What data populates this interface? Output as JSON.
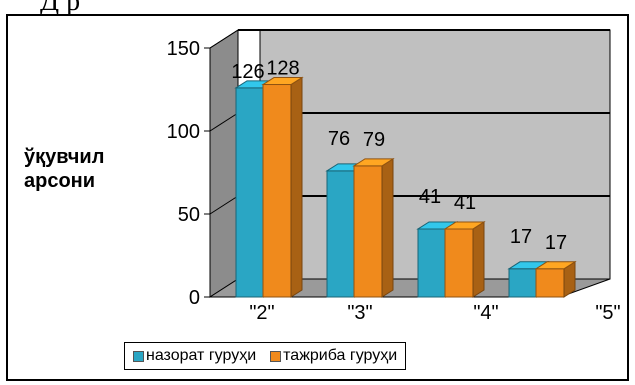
{
  "page": {
    "top_fragment": "Д      р"
  },
  "chart_data": {
    "type": "bar",
    "title": "",
    "ylabel": "ўқувчил\nарсони",
    "xlabel": "",
    "categories": [
      "\"2\"",
      "\"3\"",
      "\"4\"",
      "\"5\""
    ],
    "ylim": [
      0,
      150
    ],
    "yticks": [
      0,
      50,
      100,
      150
    ],
    "grid": true,
    "legend_position": "bottom",
    "series": [
      {
        "name": "назорат гуруҳи",
        "values": [
          126,
          76,
          41,
          17
        ],
        "color": "#2aa6c4"
      },
      {
        "name": "тажриба гуруҳи",
        "values": [
          128,
          79,
          41,
          17
        ],
        "color": "#f08a1c"
      }
    ],
    "style": {
      "wall_color": "#c0c0c0",
      "floor_color": "#9a9a9a",
      "gridline_color": "#000000"
    }
  }
}
